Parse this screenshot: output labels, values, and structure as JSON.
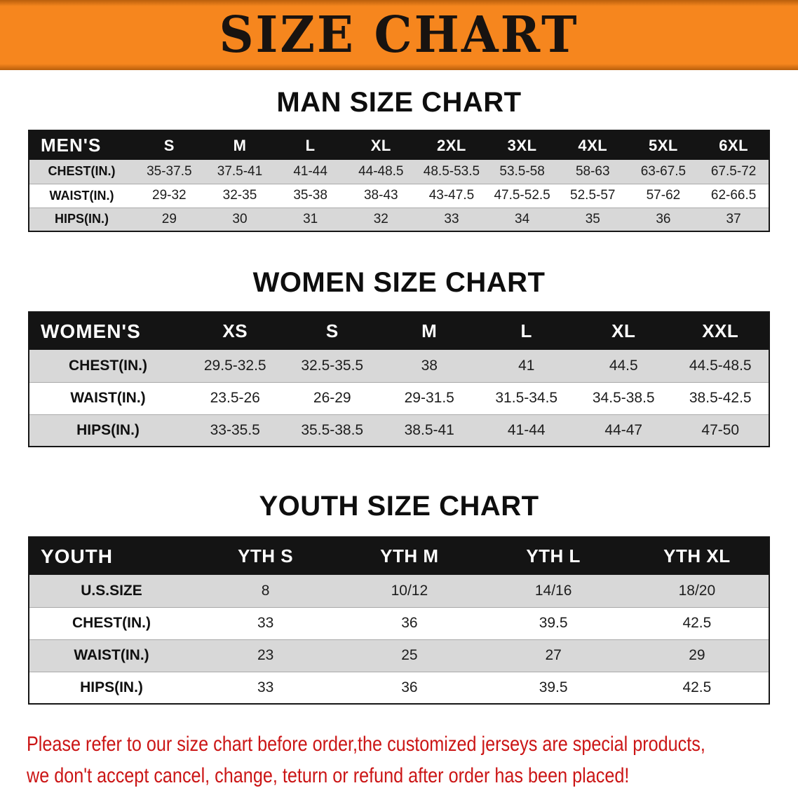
{
  "banner": {
    "title": "SIZE CHART",
    "bg_color": "#f6861e",
    "title_color": "#181310"
  },
  "sections": [
    {
      "id": "men",
      "heading": "MAN SIZE CHART",
      "table": {
        "header": [
          "MEN'S",
          "S",
          "M",
          "L",
          "XL",
          "2XL",
          "3XL",
          "4XL",
          "5XL",
          "6XL"
        ],
        "rows": [
          [
            "CHEST(IN.)",
            "35-37.5",
            "37.5-41",
            "41-44",
            "44-48.5",
            "48.5-53.5",
            "53.5-58",
            "58-63",
            "63-67.5",
            "67.5-72"
          ],
          [
            "WAIST(IN.)",
            "29-32",
            "32-35",
            "35-38",
            "38-43",
            "43-47.5",
            "47.5-52.5",
            "52.5-57",
            "57-62",
            "62-66.5"
          ],
          [
            "HIPS(IN.)",
            "29",
            "30",
            "31",
            "32",
            "33",
            "34",
            "35",
            "36",
            "37"
          ]
        ]
      }
    },
    {
      "id": "women",
      "heading": "WOMEN SIZE CHART",
      "table": {
        "header": [
          "WOMEN'S",
          "XS",
          "S",
          "M",
          "L",
          "XL",
          "XXL"
        ],
        "rows": [
          [
            "CHEST(IN.)",
            "29.5-32.5",
            "32.5-35.5",
            "38",
            "41",
            "44.5",
            "44.5-48.5"
          ],
          [
            "WAIST(IN.)",
            "23.5-26",
            "26-29",
            "29-31.5",
            "31.5-34.5",
            "34.5-38.5",
            "38.5-42.5"
          ],
          [
            "HIPS(IN.)",
            "33-35.5",
            "35.5-38.5",
            "38.5-41",
            "41-44",
            "44-47",
            "47-50"
          ]
        ]
      }
    },
    {
      "id": "youth",
      "heading": "YOUTH SIZE CHART",
      "table": {
        "header": [
          "YOUTH",
          "YTH S",
          "YTH M",
          "YTH L",
          "YTH XL"
        ],
        "rows": [
          [
            "U.S.SIZE",
            "8",
            "10/12",
            "14/16",
            "18/20"
          ],
          [
            "CHEST(IN.)",
            "33",
            "36",
            "39.5",
            "42.5"
          ],
          [
            "WAIST(IN.)",
            "23",
            "25",
            "27",
            "29"
          ],
          [
            "HIPS(IN.)",
            "33",
            "36",
            "39.5",
            "42.5"
          ]
        ]
      }
    }
  ],
  "footer": {
    "lines": [
      "Please refer to our size chart before order,the customized jerseys are special products,",
      "we don't accept cancel, change, teturn or refund after order has been placed!"
    ],
    "text_color": "#cb1515"
  },
  "colors": {
    "header_row_bg": "#141414",
    "header_row_text": "#ffffff",
    "zebra_row_bg": "#d8d8d8"
  }
}
